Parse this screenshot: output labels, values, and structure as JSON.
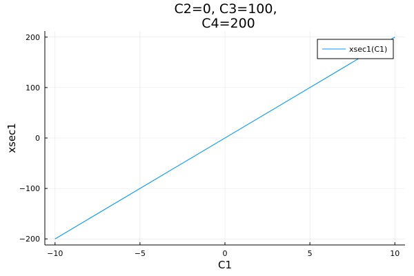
{
  "chart_data": {
    "type": "line",
    "title_lines": [
      "C2=0, C3=100,",
      "C4=200"
    ],
    "xlabel": "C1",
    "ylabel": "xsec1",
    "xlim": [
      -10.6,
      10.6
    ],
    "ylim": [
      -212,
      212
    ],
    "x_ticks": [
      -10,
      -5,
      0,
      5,
      10
    ],
    "x_tick_labels": [
      "−10",
      "−5",
      "0",
      "5",
      "10"
    ],
    "y_ticks": [
      -200,
      -100,
      0,
      100,
      200
    ],
    "y_tick_labels": [
      "−200",
      "−100",
      "0",
      "100",
      "200"
    ],
    "grid": true,
    "legend_position": "top-right",
    "series": [
      {
        "name": "xsec1(C1)",
        "color": "#009AFA",
        "x": [
          -10,
          10
        ],
        "y": [
          -200,
          200
        ]
      }
    ]
  }
}
